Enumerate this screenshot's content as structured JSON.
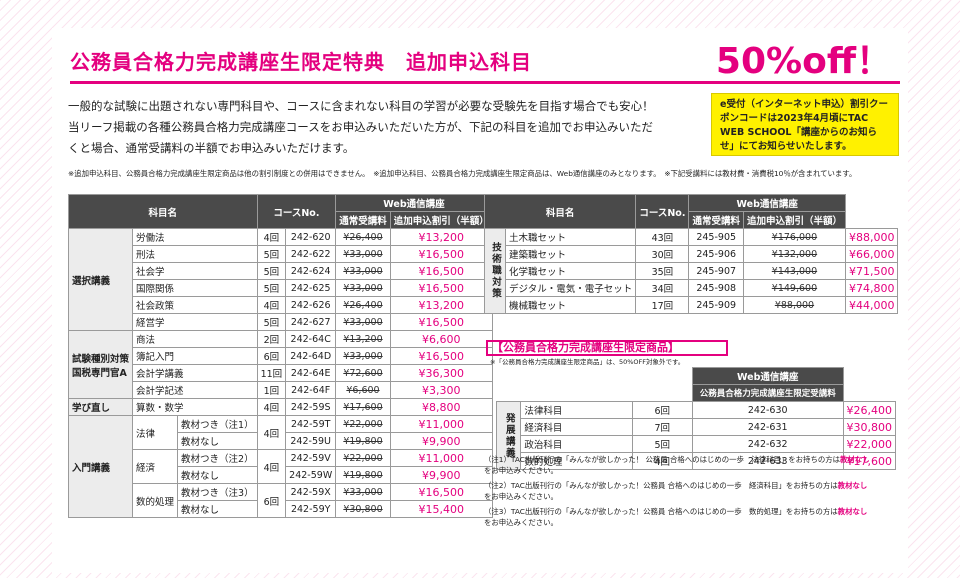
{
  "title": {
    "main": "公務員合格力完成講座生限定特典　追加申込科目",
    "off": "50%off！"
  },
  "intro": [
    "一般的な試験に出題されない専門科目や、コースに含まれない科目の学習が必要な受験先を目指す場合でも安心！",
    "当リーフ掲載の各種公務員合格力完成講座コースをお申込みいただいた方が、下記の科目を追加でお申込みいただ",
    "くと場合、通常受講料の半額でお申込みいただけます。"
  ],
  "notice": "e受付（インターネット申込）割引クーポンコードは2023年4月頃にTAC WEB SCHOOL「講座からのお知らせ」にてお知らせいたします。",
  "footnote": "※追加申込科目、公務員合格力完成講座生限定商品は他の割引制度との併用はできません。　※追加申込科目、公務員合格力完成講座生限定商品は、Web通信講座のみとなります。　※下記受講料には教材費・消費税10％が含まれています。",
  "table_headers": {
    "subject": "科目名",
    "course_no": "コースNo.",
    "web": "Web通信講座",
    "normal": "通常受講料",
    "discount": "追加申込割引（半額）"
  },
  "table1": [
    {
      "group": "選択講義",
      "name": "労働法",
      "times": "4回",
      "no": "242-620",
      "normal": "¥26,400",
      "disc": "¥13,200"
    },
    {
      "name": "刑法",
      "times": "5回",
      "no": "242-622",
      "normal": "¥33,000",
      "disc": "¥16,500"
    },
    {
      "name": "社会学",
      "times": "5回",
      "no": "242-624",
      "normal": "¥33,000",
      "disc": "¥16,500"
    },
    {
      "name": "国際関係",
      "times": "5回",
      "no": "242-625",
      "normal": "¥33,000",
      "disc": "¥16,500"
    },
    {
      "name": "社会政策",
      "times": "4回",
      "no": "242-626",
      "normal": "¥26,400",
      "disc": "¥13,200"
    },
    {
      "name": "経営学",
      "times": "5回",
      "no": "242-627",
      "normal": "¥33,000",
      "disc": "¥16,500"
    },
    {
      "group": "試験種別対策",
      "group2": "国税専門官A",
      "name": "商法",
      "times": "2回",
      "no": "242-64C",
      "normal": "¥13,200",
      "disc": "¥6,600"
    },
    {
      "name": "簿記入門",
      "times": "6回",
      "no": "242-64D",
      "normal": "¥33,000",
      "disc": "¥16,500"
    },
    {
      "name": "会計学講義",
      "times": "11回",
      "no": "242-64E",
      "normal": "¥72,600",
      "disc": "¥36,300"
    },
    {
      "name": "会計学記述",
      "times": "1回",
      "no": "242-64F",
      "normal": "¥6,600",
      "disc": "¥3,300"
    },
    {
      "group": "学び直し",
      "name": "算数・数学",
      "times": "4回",
      "no": "242-59S",
      "normal": "¥17,600",
      "disc": "¥8,800"
    }
  ],
  "intro_group": "入門講義",
  "intro_rows": [
    {
      "subject": "法律",
      "times": "4回",
      "opts": [
        {
          "opt": "教材つき（注1）",
          "no": "242-59T",
          "normal": "¥22,000",
          "disc": "¥11,000"
        },
        {
          "opt": "教材なし",
          "no": "242-59U",
          "normal": "¥19,800",
          "disc": "¥9,900"
        }
      ]
    },
    {
      "subject": "経済",
      "times": "4回",
      "opts": [
        {
          "opt": "教材つき（注2）",
          "no": "242-59V",
          "normal": "¥22,000",
          "disc": "¥11,000"
        },
        {
          "opt": "教材なし",
          "no": "242-59W",
          "normal": "¥19,800",
          "disc": "¥9,900"
        }
      ]
    },
    {
      "subject": "数的処理",
      "times": "6回",
      "opts": [
        {
          "opt": "教材つき（注3）",
          "no": "242-59X",
          "normal": "¥33,000",
          "disc": "¥16,500"
        },
        {
          "opt": "教材なし",
          "no": "242-59Y",
          "normal": "¥30,800",
          "disc": "¥15,400"
        }
      ]
    }
  ],
  "table2": {
    "group": "技術職対策",
    "rows": [
      {
        "name": "土木職セット",
        "times": "43回",
        "no": "245-905",
        "normal": "¥176,000",
        "disc": "¥88,000"
      },
      {
        "name": "建築職セット",
        "times": "30回",
        "no": "245-906",
        "normal": "¥132,000",
        "disc": "¥66,000"
      },
      {
        "name": "化学職セット",
        "times": "35回",
        "no": "245-907",
        "normal": "¥143,000",
        "disc": "¥71,500"
      },
      {
        "name": "デジタル・電気・電子セット",
        "times": "34回",
        "no": "245-908",
        "normal": "¥149,600",
        "disc": "¥74,800"
      },
      {
        "name": "機械職セット",
        "times": "17回",
        "no": "245-909",
        "normal": "¥88,000",
        "disc": "¥44,000"
      }
    ]
  },
  "limited": {
    "title": "【公務員合格力完成講座生限定商品】",
    "note": "※「公務員合格力完成講座生限定商品」は、50%OFF対象外です。",
    "web": "Web通信講座",
    "price_header": "公務員合格力完成講座生限定受講料",
    "group": "発展講義",
    "rows": [
      {
        "name": "法律科目",
        "times": "6回",
        "no": "242-630",
        "price": "¥26,400"
      },
      {
        "name": "経済科目",
        "times": "7回",
        "no": "242-631",
        "price": "¥30,800"
      },
      {
        "name": "政治科目",
        "times": "5回",
        "no": "242-632",
        "price": "¥22,000"
      },
      {
        "name": "数的処理",
        "times": "4回",
        "no": "242-633",
        "price": "¥17,600"
      }
    ]
  },
  "notes": [
    {
      "pre": "（注1）TAC出版刊行の「みんなが欲しかった！ 公務員 合格へのはじめの一歩　法律科目」をお持ちの方は",
      "red": "教材なし",
      "post": "をお申込みください。"
    },
    {
      "pre": "（注2）TAC出版刊行の「みんなが欲しかった！公務員 合格へのはじめの一歩　経済科目」をお持ちの方は",
      "red": "教材なし",
      "post": "をお申込みください。"
    },
    {
      "pre": "（注3）TAC出版刊行の「みんなが欲しかった！公務員 合格へのはじめの一歩　数的処理」をお持ちの方は",
      "red": "教材なし",
      "post": "をお申込みください。"
    }
  ]
}
